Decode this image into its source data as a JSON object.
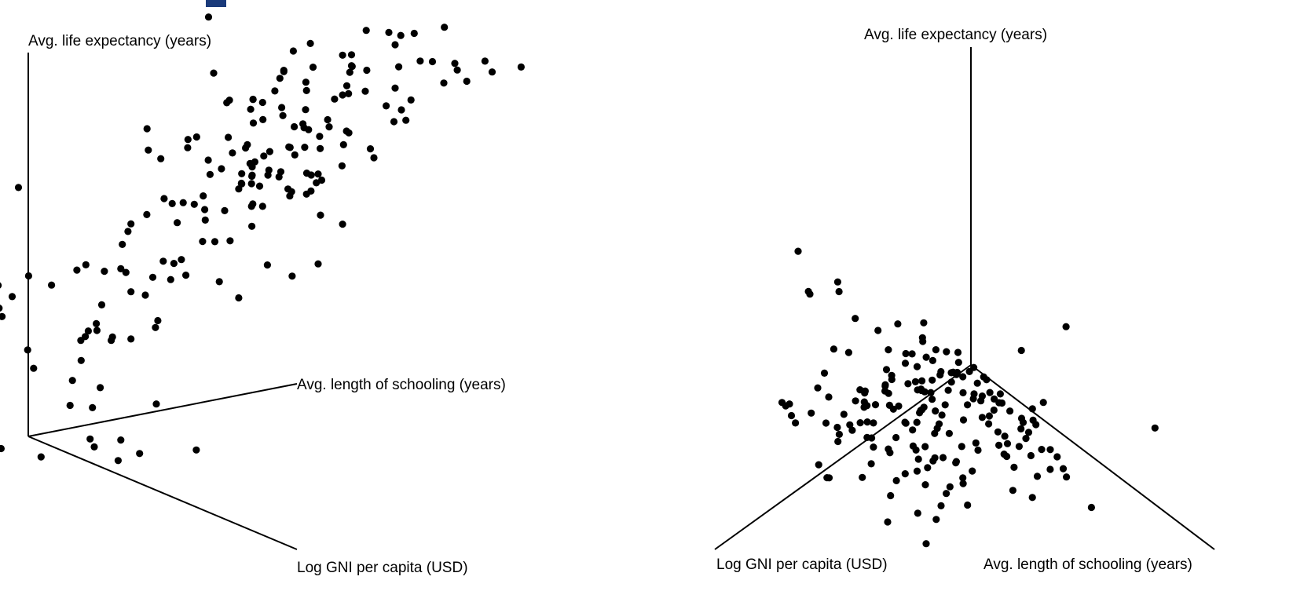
{
  "chart_data": [
    {
      "type": "scatter",
      "projection": "3d",
      "title": "",
      "axes": {
        "z_label": "Avg. life expectancy (years)",
        "y_label": "Avg. length of schooling (years)",
        "x_label": "Log GNI per capita (USD)"
      },
      "points": [
        [
          -2.3,
          1.42,
          50.8
        ],
        [
          2.84,
          1.42,
          55.2
        ],
        [
          2.84,
          -3.17,
          68.9
        ],
        [
          2.01,
          6.0,
          57.3
        ],
        [
          -1.12,
          6.0,
          54.2
        ],
        [
          7.96,
          6.73,
          78.2
        ],
        [
          6.92,
          1.92,
          63.4
        ],
        [
          -0.08,
          3.18,
          42.1
        ],
        [
          -0.01,
          3.74,
          40.8
        ],
        [
          1.78,
          -2.76,
          57.7
        ],
        [
          1.53,
          0.1,
          59.2
        ],
        [
          6.76,
          0.73,
          67.9
        ],
        [
          -0.52,
          -0.56,
          39.5
        ],
        [
          2.4,
          2.94,
          68.8
        ],
        [
          2.55,
          -3.09,
          59.6
        ],
        [
          3.65,
          2.39,
          81.1
        ],
        [
          2.49,
          4.99,
          63.1
        ],
        [
          0.11,
          -1.02,
          43.6
        ],
        [
          7.19,
          2.52,
          64.4
        ],
        [
          6.13,
          1.46,
          72.2
        ],
        [
          4.93,
          8.0,
          78.4
        ],
        [
          0.39,
          -0.21,
          50.1
        ],
        [
          1.37,
          0.78,
          47.4
        ],
        [
          1.24,
          4.04,
          56.6
        ],
        [
          3.51,
          2.7,
          76.2
        ],
        [
          4.66,
          6.8,
          69.2
        ],
        [
          1.33,
          0.58,
          53.3
        ],
        [
          2.25,
          2.19,
          68.1
        ],
        [
          1.35,
          1.43,
          52.6
        ],
        [
          4.69,
          7.56,
          71.1
        ],
        [
          4.12,
          2.58,
          71.6
        ],
        [
          5.82,
          1.7,
          68.3
        ],
        [
          4.26,
          1.6,
          67.4
        ],
        [
          4.15,
          5.93,
          70.9
        ],
        [
          7.67,
          1.62,
          78.0
        ],
        [
          5.75,
          4.76,
          69.9
        ],
        [
          4.32,
          3.11,
          69.4
        ],
        [
          2.9,
          3.84,
          72.8
        ],
        [
          2.42,
          1.02,
          57.9
        ],
        [
          1.39,
          0.68,
          44.9
        ],
        [
          5.95,
          2.45,
          70.3
        ],
        [
          6.31,
          6.19,
          74.4
        ],
        [
          5.44,
          4.34,
          71.2
        ],
        [
          8.69,
          7.82,
          79.6
        ],
        [
          2.58,
          4.9,
          65.1
        ],
        [
          2.51,
          -0.21,
          55.4
        ],
        [
          1.39,
          1.71,
          58.4
        ],
        [
          4.94,
          5.79,
          74.5
        ],
        [
          5.28,
          3.45,
          71.6
        ],
        [
          4.75,
          5.51,
          74.0
        ],
        [
          -0.12,
          2.33,
          41.9
        ],
        [
          3.41,
          3.24,
          73.4
        ],
        [
          3.45,
          5.11,
          75.1
        ],
        [
          7.6,
          4.69,
          81.8
        ],
        [
          8.34,
          2.19,
          82.9
        ],
        [
          7.42,
          5.06,
          82.2
        ],
        [
          5.94,
          4.62,
          71.9
        ],
        [
          5.38,
          1.67,
          69.1
        ],
        [
          4.96,
          -0.19,
          62.1
        ],
        [
          1.71,
          1.56,
          58.5
        ],
        [
          0.85,
          3.44,
          45.9
        ],
        [
          3.34,
          4.2,
          71.2
        ],
        [
          1.79,
          -2.8,
          59.6
        ],
        [
          3.46,
          5.3,
          64.8
        ],
        [
          2.98,
          4.55,
          72.6
        ],
        [
          1.63,
          2.89,
          58.7
        ],
        [
          7.24,
          4.08,
          82.9
        ],
        [
          6.99,
          2.27,
          73.9
        ],
        [
          1.64,
          1.18,
          53.3
        ],
        [
          3.82,
          1.37,
          66.5
        ],
        [
          5.14,
          3.74,
          79.2
        ],
        [
          5.35,
          5.39,
          71.9
        ],
        [
          0.82,
          2.62,
          51.6
        ],
        [
          6.37,
          3.08,
          81.4
        ],
        [
          6.43,
          3.11,
          79.5
        ],
        [
          3.44,
          4.99,
          74.6
        ],
        [
          7.43,
          5.7,
          79.8
        ],
        [
          7.62,
          1.29,
          76.7
        ],
        [
          3.9,
          2.57,
          68.8
        ],
        [
          6.14,
          1.31,
          76.6
        ],
        [
          8.92,
          6.62,
          80.0
        ],
        [
          4.67,
          1.26,
          66.0
        ],
        [
          4.73,
          4.04,
          70.7
        ],
        [
          2.2,
          0.95,
          61.6
        ],
        [
          -1.07,
          1.05,
          49.5
        ],
        [
          1.09,
          1.32,
          48.5
        ],
        [
          4.76,
          5.03,
          64.7
        ],
        [
          2.55,
          0.79,
          63.1
        ],
        [
          1.84,
          5.21,
          54.8
        ],
        [
          4.52,
          4.8,
          74.8
        ],
        [
          3.26,
          1.29,
          66.3
        ],
        [
          6.77,
          7.17,
          81.2
        ],
        [
          4.74,
          3.29,
          68.8
        ],
        [
          4.02,
          2.82,
          70.1
        ],
        [
          2.49,
          1.43,
          57.5
        ],
        [
          0.68,
          1.6,
          53.2
        ],
        [
          4.29,
          1.62,
          66.3
        ],
        [
          4.35,
          3.71,
          68.6
        ],
        [
          3.71,
          5.49,
          70.9
        ],
        [
          4.24,
          6.59,
          75.7
        ],
        [
          4.92,
          2.42,
          71.9
        ],
        [
          4.36,
          4.1,
          68.3
        ],
        [
          7.38,
          6.99,
          78.4
        ],
        [
          5.86,
          6.55,
          77.3
        ],
        [
          2.03,
          0.43,
          56.7
        ],
        [
          5.73,
          2.36,
          72.2
        ],
        [
          2.75,
          5.51,
          72.6
        ],
        [
          7.47,
          3.2,
          79.0
        ],
        [
          4.64,
          2.5,
          68.4
        ],
        [
          5.48,
          3.91,
          73.0
        ],
        [
          7.33,
          3.52,
          80.3
        ],
        [
          3.97,
          4.59,
          76.0
        ],
        [
          5.69,
          4.97,
          72.6
        ],
        [
          0.93,
          0.55,
          49.3
        ],
        [
          3.7,
          2.88,
          65.0
        ],
        [
          4.25,
          4.45,
          66.6
        ],
        [
          0.6,
          1.17,
          50.3
        ],
        [
          7.53,
          4.55,
          82.8
        ],
        [
          4.43,
          3.06,
          68.5
        ],
        [
          -0.14,
          0.57,
          41.9
        ],
        [
          2.34,
          -1.56,
          59.6
        ],
        [
          3.6,
          5.72,
          64.9
        ],
        [
          4.91,
          2.59,
          69.3
        ],
        [
          8.58,
          4.07,
          76.9
        ],
        [
          5.08,
          4.63,
          68.6
        ],
        [
          -0.78,
          2.18,
          44.7
        ],
        [
          8.06,
          4.76,
          77.7
        ],
        [
          1.93,
          3.2,
          59.0
        ],
        [
          5.32,
          4.51,
          68.4
        ],
        [
          2.68,
          2.67,
          69.9
        ],
        [
          7.64,
          4.65,
          78.3
        ],
        [
          6.03,
          2.79,
          69.0
        ],
        [
          3.49,
          2.54,
          69.1
        ],
        [
          2.2,
          4.95,
          65.5
        ],
        [
          7.25,
          1.99,
          75.9
        ],
        [
          4.82,
          0.82,
          73.2
        ],
        [
          5.58,
          2.31,
          71.7
        ],
        [
          3.72,
          1.27,
          64.8
        ],
        [
          3.03,
          0.41,
          64.4
        ],
        [
          3.12,
          0.86,
          72.1
        ],
        [
          7.79,
          5.75,
          80.1
        ],
        [
          7.92,
          2.11,
          77.2
        ],
        [
          5.44,
          3.89,
          69.4
        ],
        [
          1.19,
          0.82,
          53.5
        ],
        [
          7.13,
          3.4,
          77.8
        ],
        [
          2.5,
          3.06,
          64.2
        ],
        [
          2.76,
          2.06,
          65.0
        ],
        [
          7.76,
          3.53,
          78.7
        ],
        [
          3.17,
          4.36,
          72.9
        ],
        [
          1.76,
          2.58,
          54.1
        ],
        [
          2.28,
          0.27,
          59.8
        ],
        [
          8.08,
          5.84,
          78.6
        ],
        [
          1.67,
          0.26,
          59.7
        ],
        [
          5.42,
          5.11,
          64.6
        ],
        [
          3.05,
          5.48,
          70.9
        ],
        [
          6.66,
          5.33,
          75.5
        ],
        [
          5.41,
          1.87,
          72.4
        ],
        [
          0.96,
          0.8,
          52.5
        ],
        [
          3.06,
          5.43,
          71.6
        ],
        [
          4.28,
          -0.31,
          66.8
        ],
        [
          5.93,
          3.54,
          68.6
        ],
        [
          2.36,
          3.48,
          60.8
        ],
        [
          4.58,
          6.19,
          75.7
        ],
        [
          3.96,
          2.13,
          68.6
        ],
        [
          6.89,
          3.94,
          80.6
        ],
        [
          4.34,
          2.42,
          63.4
        ],
        [
          6.31,
          5.27,
          70.9
        ],
        [
          5.46,
          4.02,
          69.2
        ],
        [
          6.86,
          7.43,
          78.2
        ],
        [
          7.92,
          7.38,
          79.5
        ],
        [
          2.57,
          3.68,
          60.9
        ],
        [
          3.53,
          5.4,
          68.2
        ],
        [
          1.68,
          4.72,
          56.2
        ],
        [
          0.4,
          5.23,
          40.8
        ],
        [
          6.11,
          3.19,
          77.9
        ],
        [
          4.39,
          3.11,
          69.2
        ],
        [
          4.81,
          2.34,
          68.6
        ],
        [
          5.23,
          2.62,
          75.6
        ],
        [
          3.5,
          0.52,
          70.9
        ],
        [
          7.76,
          3.58,
          80.4
        ],
        [
          4.33,
          3.52,
          65.7
        ],
        [
          2.79,
          1.38,
          59.3
        ],
        [
          3.13,
          4.62,
          65.6
        ],
        [
          -0.25,
          3.26,
          40.2
        ],
        [
          4.81,
          4.84,
          67.5
        ],
        [
          4.38,
          3.48,
          72.9
        ],
        [
          2.79,
          -2.78,
          61.4
        ],
        [
          5.96,
          3.8,
          73.0
        ]
      ],
      "point_color": "#000000"
    },
    {
      "type": "scatter",
      "projection": "3d",
      "title": "",
      "axes": {
        "z_label": "Avg. life expectancy (years)",
        "y_label": "Avg. length of schooling (years)",
        "x_label": "Log GNI per capita (USD)"
      },
      "point_color": "#000000"
    }
  ]
}
